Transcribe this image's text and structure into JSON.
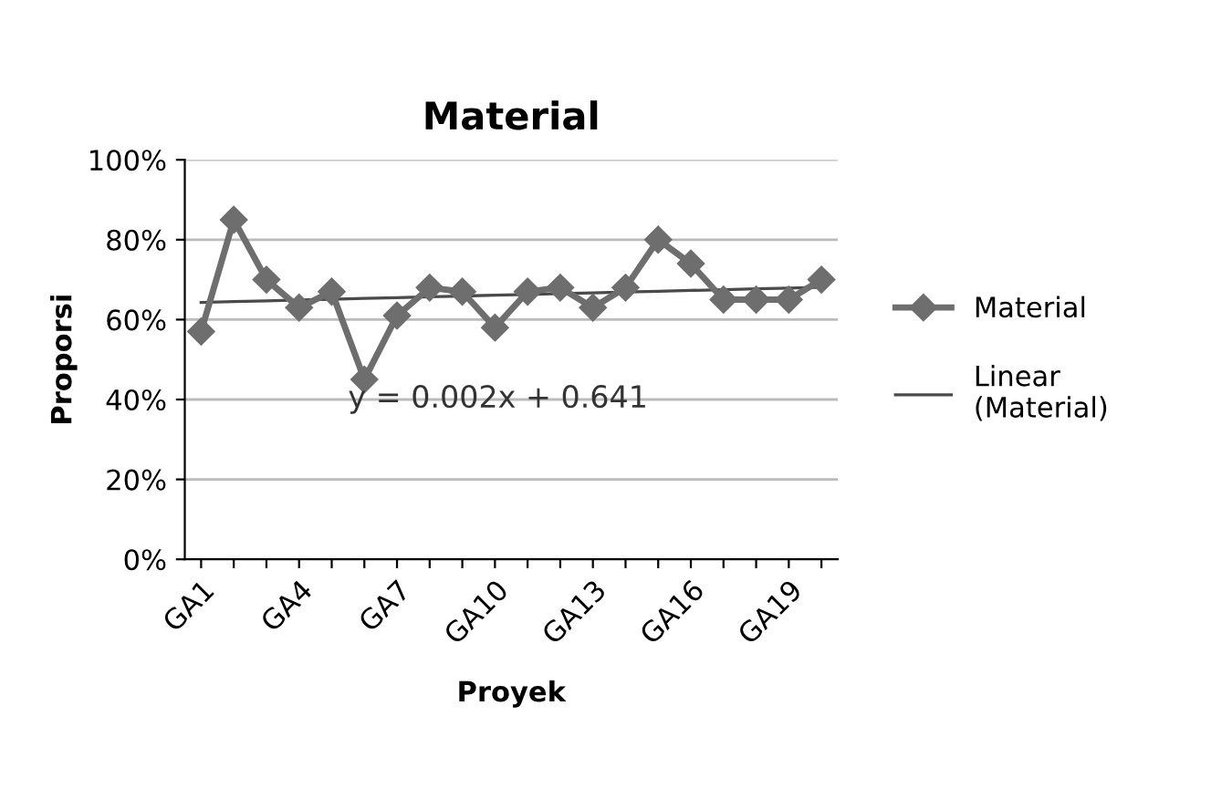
{
  "chart_data": {
    "type": "line",
    "title": "Material",
    "xlabel": "Proyek",
    "ylabel": "Proporsi",
    "categories": [
      "GA1",
      null,
      null,
      "GA4",
      null,
      null,
      "GA7",
      null,
      null,
      "GA10",
      null,
      null,
      "GA13",
      null,
      null,
      "GA16",
      null,
      null,
      "GA19",
      null
    ],
    "series": [
      {
        "name": "Material",
        "color": "#6e6e6e",
        "marker": "diamond",
        "values": [
          57,
          85,
          70,
          63,
          67,
          45,
          61,
          68,
          67,
          58,
          67,
          68,
          63,
          68,
          80,
          74,
          65,
          65,
          65,
          70
        ]
      },
      {
        "name": "Linear (Material)",
        "color": "#4a4a4a",
        "type": "line",
        "marker": "none",
        "values": [
          64.3,
          64.5,
          64.7,
          64.9,
          65.1,
          65.3,
          65.5,
          65.7,
          65.9,
          66.1,
          66.3,
          66.5,
          66.7,
          66.9,
          67.1,
          67.3,
          67.5,
          67.7,
          67.9,
          68.1
        ]
      }
    ],
    "ylim": [
      0,
      100
    ],
    "yticks": [
      {
        "value": 0,
        "label": "0%"
      },
      {
        "value": 20,
        "label": "20%"
      },
      {
        "value": 40,
        "label": "40%"
      },
      {
        "value": 60,
        "label": "60%"
      },
      {
        "value": 80,
        "label": "80%"
      },
      {
        "value": 100,
        "label": "100%"
      }
    ],
    "grid": "y",
    "legend": "right",
    "annotations": [
      "y = 0.002x + 0.641"
    ]
  }
}
